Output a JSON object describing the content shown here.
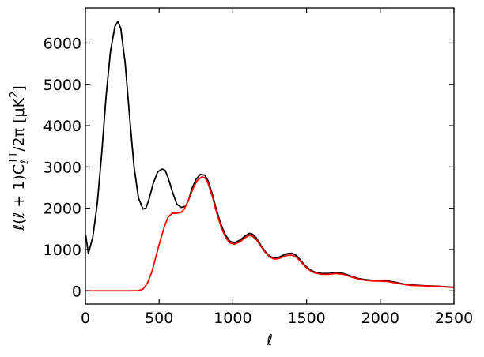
{
  "chart_data": {
    "type": "line",
    "xlabel": "ℓ",
    "ylabel": "ℓ(ℓ + 1)C",
    "ylabel_sub": "ℓ",
    "ylabel_sup": "TT",
    "ylabel_tail": "/2π [μK",
    "ylabel_sup2": "2",
    "ylabel_end": "]",
    "xlim": [
      0,
      2500
    ],
    "ylim": [
      -320,
      6850
    ],
    "xticks": [
      0,
      500,
      1000,
      1500,
      2000,
      2500
    ],
    "yticks": [
      0,
      1000,
      2000,
      3000,
      4000,
      5000,
      6000
    ],
    "grid": false,
    "series": [
      {
        "color": "#000000",
        "x": [
          2,
          20,
          50,
          80,
          110,
          140,
          170,
          200,
          220,
          240,
          270,
          300,
          330,
          360,
          390,
          410,
          430,
          460,
          490,
          520,
          540,
          560,
          590,
          620,
          650,
          680,
          700,
          720,
          750,
          780,
          810,
          830,
          860,
          890,
          920,
          950,
          980,
          1010,
          1050,
          1080,
          1110,
          1130,
          1160,
          1190,
          1220,
          1250,
          1280,
          1310,
          1340,
          1370,
          1400,
          1430,
          1460,
          1490,
          1520,
          1550,
          1600,
          1650,
          1700,
          1750,
          1800,
          1850,
          1900,
          1950,
          2000,
          2050,
          2100,
          2150,
          2200,
          2300,
          2400,
          2500
        ],
        "y": [
          1350,
          900,
          1300,
          2100,
          3300,
          4700,
          5800,
          6400,
          6520,
          6350,
          5500,
          4200,
          3000,
          2250,
          1980,
          2000,
          2200,
          2600,
          2880,
          2950,
          2920,
          2750,
          2400,
          2100,
          2020,
          2050,
          2200,
          2450,
          2700,
          2820,
          2800,
          2680,
          2350,
          1950,
          1600,
          1350,
          1200,
          1160,
          1230,
          1320,
          1390,
          1380,
          1280,
          1100,
          950,
          840,
          790,
          810,
          860,
          900,
          910,
          860,
          740,
          610,
          520,
          460,
          420,
          420,
          440,
          420,
          360,
          300,
          270,
          255,
          250,
          240,
          210,
          170,
          145,
          125,
          110,
          85
        ]
      },
      {
        "color": "#ff0000",
        "x": [
          0,
          100,
          200,
          300,
          360,
          390,
          420,
          450,
          480,
          510,
          540,
          560,
          590,
          620,
          650,
          670,
          700,
          730,
          760,
          790,
          810,
          830,
          860,
          890,
          920,
          950,
          980,
          1010,
          1050,
          1080,
          1110,
          1130,
          1160,
          1190,
          1220,
          1250,
          1280,
          1310,
          1340,
          1370,
          1400,
          1430,
          1460,
          1490,
          1520,
          1550,
          1600,
          1650,
          1700,
          1750,
          1800,
          1850,
          1900,
          1950,
          2000,
          2050,
          2100,
          2150,
          2200,
          2300,
          2400,
          2500
        ],
        "y": [
          0,
          0,
          0,
          0,
          5,
          40,
          180,
          450,
          850,
          1250,
          1600,
          1780,
          1880,
          1880,
          1900,
          1980,
          2200,
          2480,
          2680,
          2760,
          2740,
          2620,
          2300,
          1900,
          1550,
          1300,
          1160,
          1130,
          1190,
          1280,
          1340,
          1330,
          1240,
          1080,
          930,
          820,
          770,
          780,
          820,
          860,
          860,
          820,
          710,
          590,
          500,
          440,
          400,
          400,
          420,
          400,
          340,
          290,
          255,
          240,
          235,
          225,
          195,
          160,
          135,
          120,
          105,
          80
        ]
      }
    ]
  }
}
